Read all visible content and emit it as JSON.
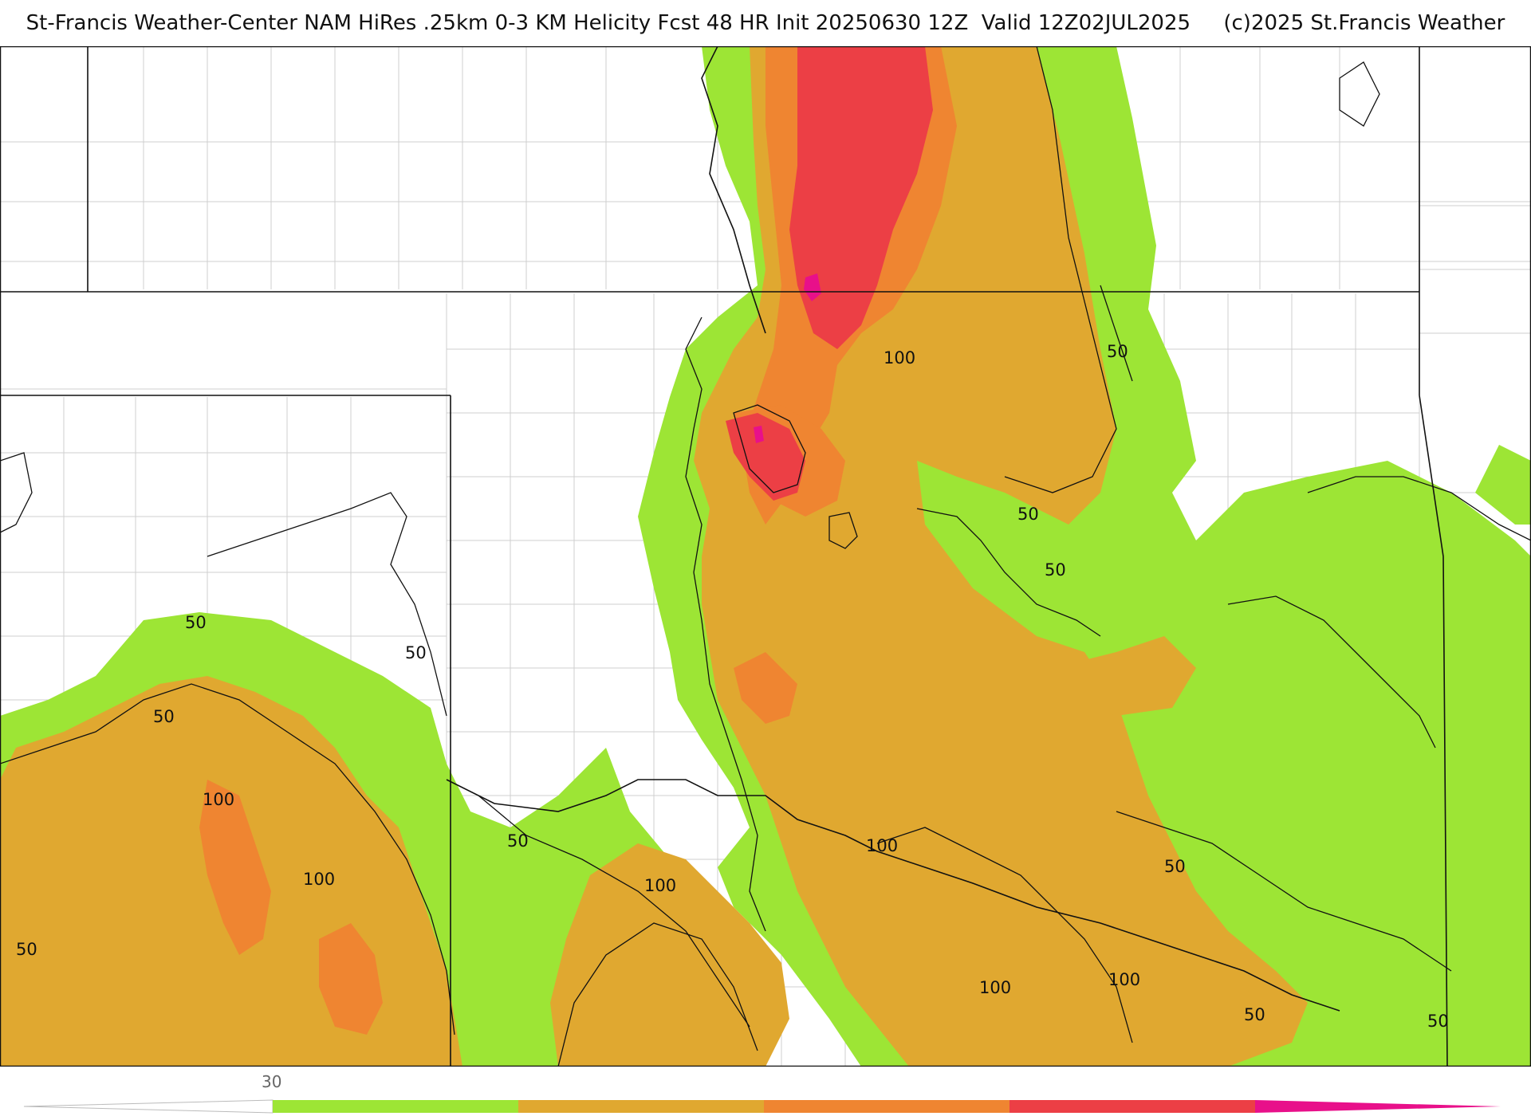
{
  "header": {
    "title": "St-Francis Weather-Center NAM HiRes .25km 0-3 KM Helicity Fcst 48 HR Init 20250630 12Z  Valid 12Z02JUL2025     (c)2025 St.Francis Weather"
  },
  "map": {
    "field": "0-3 KM Helicity",
    "contour_labels": [
      {
        "id": "c1",
        "text": "100"
      },
      {
        "id": "c2",
        "text": "50"
      },
      {
        "id": "c3",
        "text": "50"
      },
      {
        "id": "c4",
        "text": "50"
      },
      {
        "id": "c5",
        "text": "50"
      },
      {
        "id": "c6",
        "text": "50"
      },
      {
        "id": "c7",
        "text": "100"
      },
      {
        "id": "c8",
        "text": "100"
      },
      {
        "id": "c9",
        "text": "50"
      },
      {
        "id": "c10",
        "text": "100"
      },
      {
        "id": "c11",
        "text": "50"
      },
      {
        "id": "c12",
        "text": "100"
      },
      {
        "id": "c13",
        "text": "100"
      },
      {
        "id": "c14",
        "text": "100"
      },
      {
        "id": "c15",
        "text": "50"
      },
      {
        "id": "c16",
        "text": "50"
      },
      {
        "id": "c17",
        "text": "50"
      },
      {
        "id": "c18",
        "text": "50"
      }
    ],
    "colors": {
      "band_50": "#9de535",
      "band_100": "#e0a830",
      "band_150": "#ef8531",
      "band_200": "#ec3f45",
      "band_250": "#e8108a",
      "land": "#ffffff"
    }
  },
  "colorbar": {
    "tick_label": "30",
    "segments": [
      "#9de535",
      "#e0a830",
      "#ef8531",
      "#ec3f45",
      "#e8108a"
    ]
  }
}
